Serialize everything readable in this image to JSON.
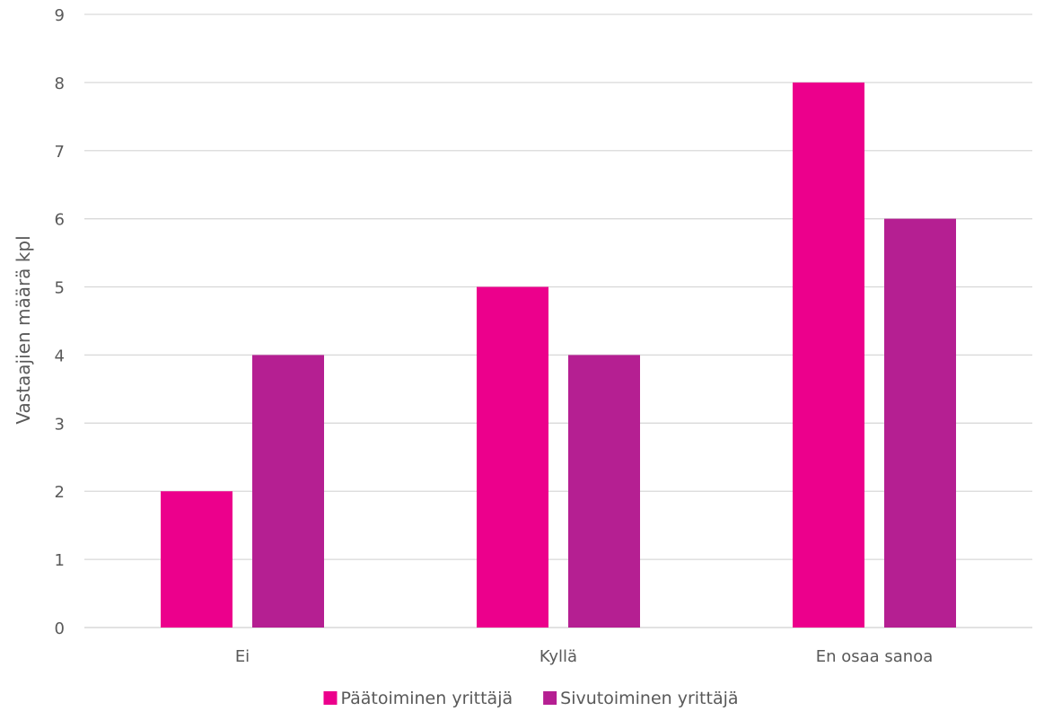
{
  "chart_data": {
    "type": "bar",
    "title": "",
    "xlabel": "",
    "ylabel": "Vastaajien määrä kpl",
    "ylim": [
      0,
      9
    ],
    "yticks": [
      0,
      1,
      2,
      3,
      4,
      5,
      6,
      7,
      8,
      9
    ],
    "grid": true,
    "legend_position": "bottom",
    "categories": [
      "Ei",
      "Kyllä",
      "En osaa sanoa"
    ],
    "series": [
      {
        "name": "Päätoiminen yrittäjä",
        "color": "#EC008C",
        "values": [
          2,
          5,
          8
        ]
      },
      {
        "name": "Sivutoiminen yrittäjä",
        "color": "#B51F92",
        "values": [
          4,
          4,
          6
        ]
      }
    ]
  }
}
